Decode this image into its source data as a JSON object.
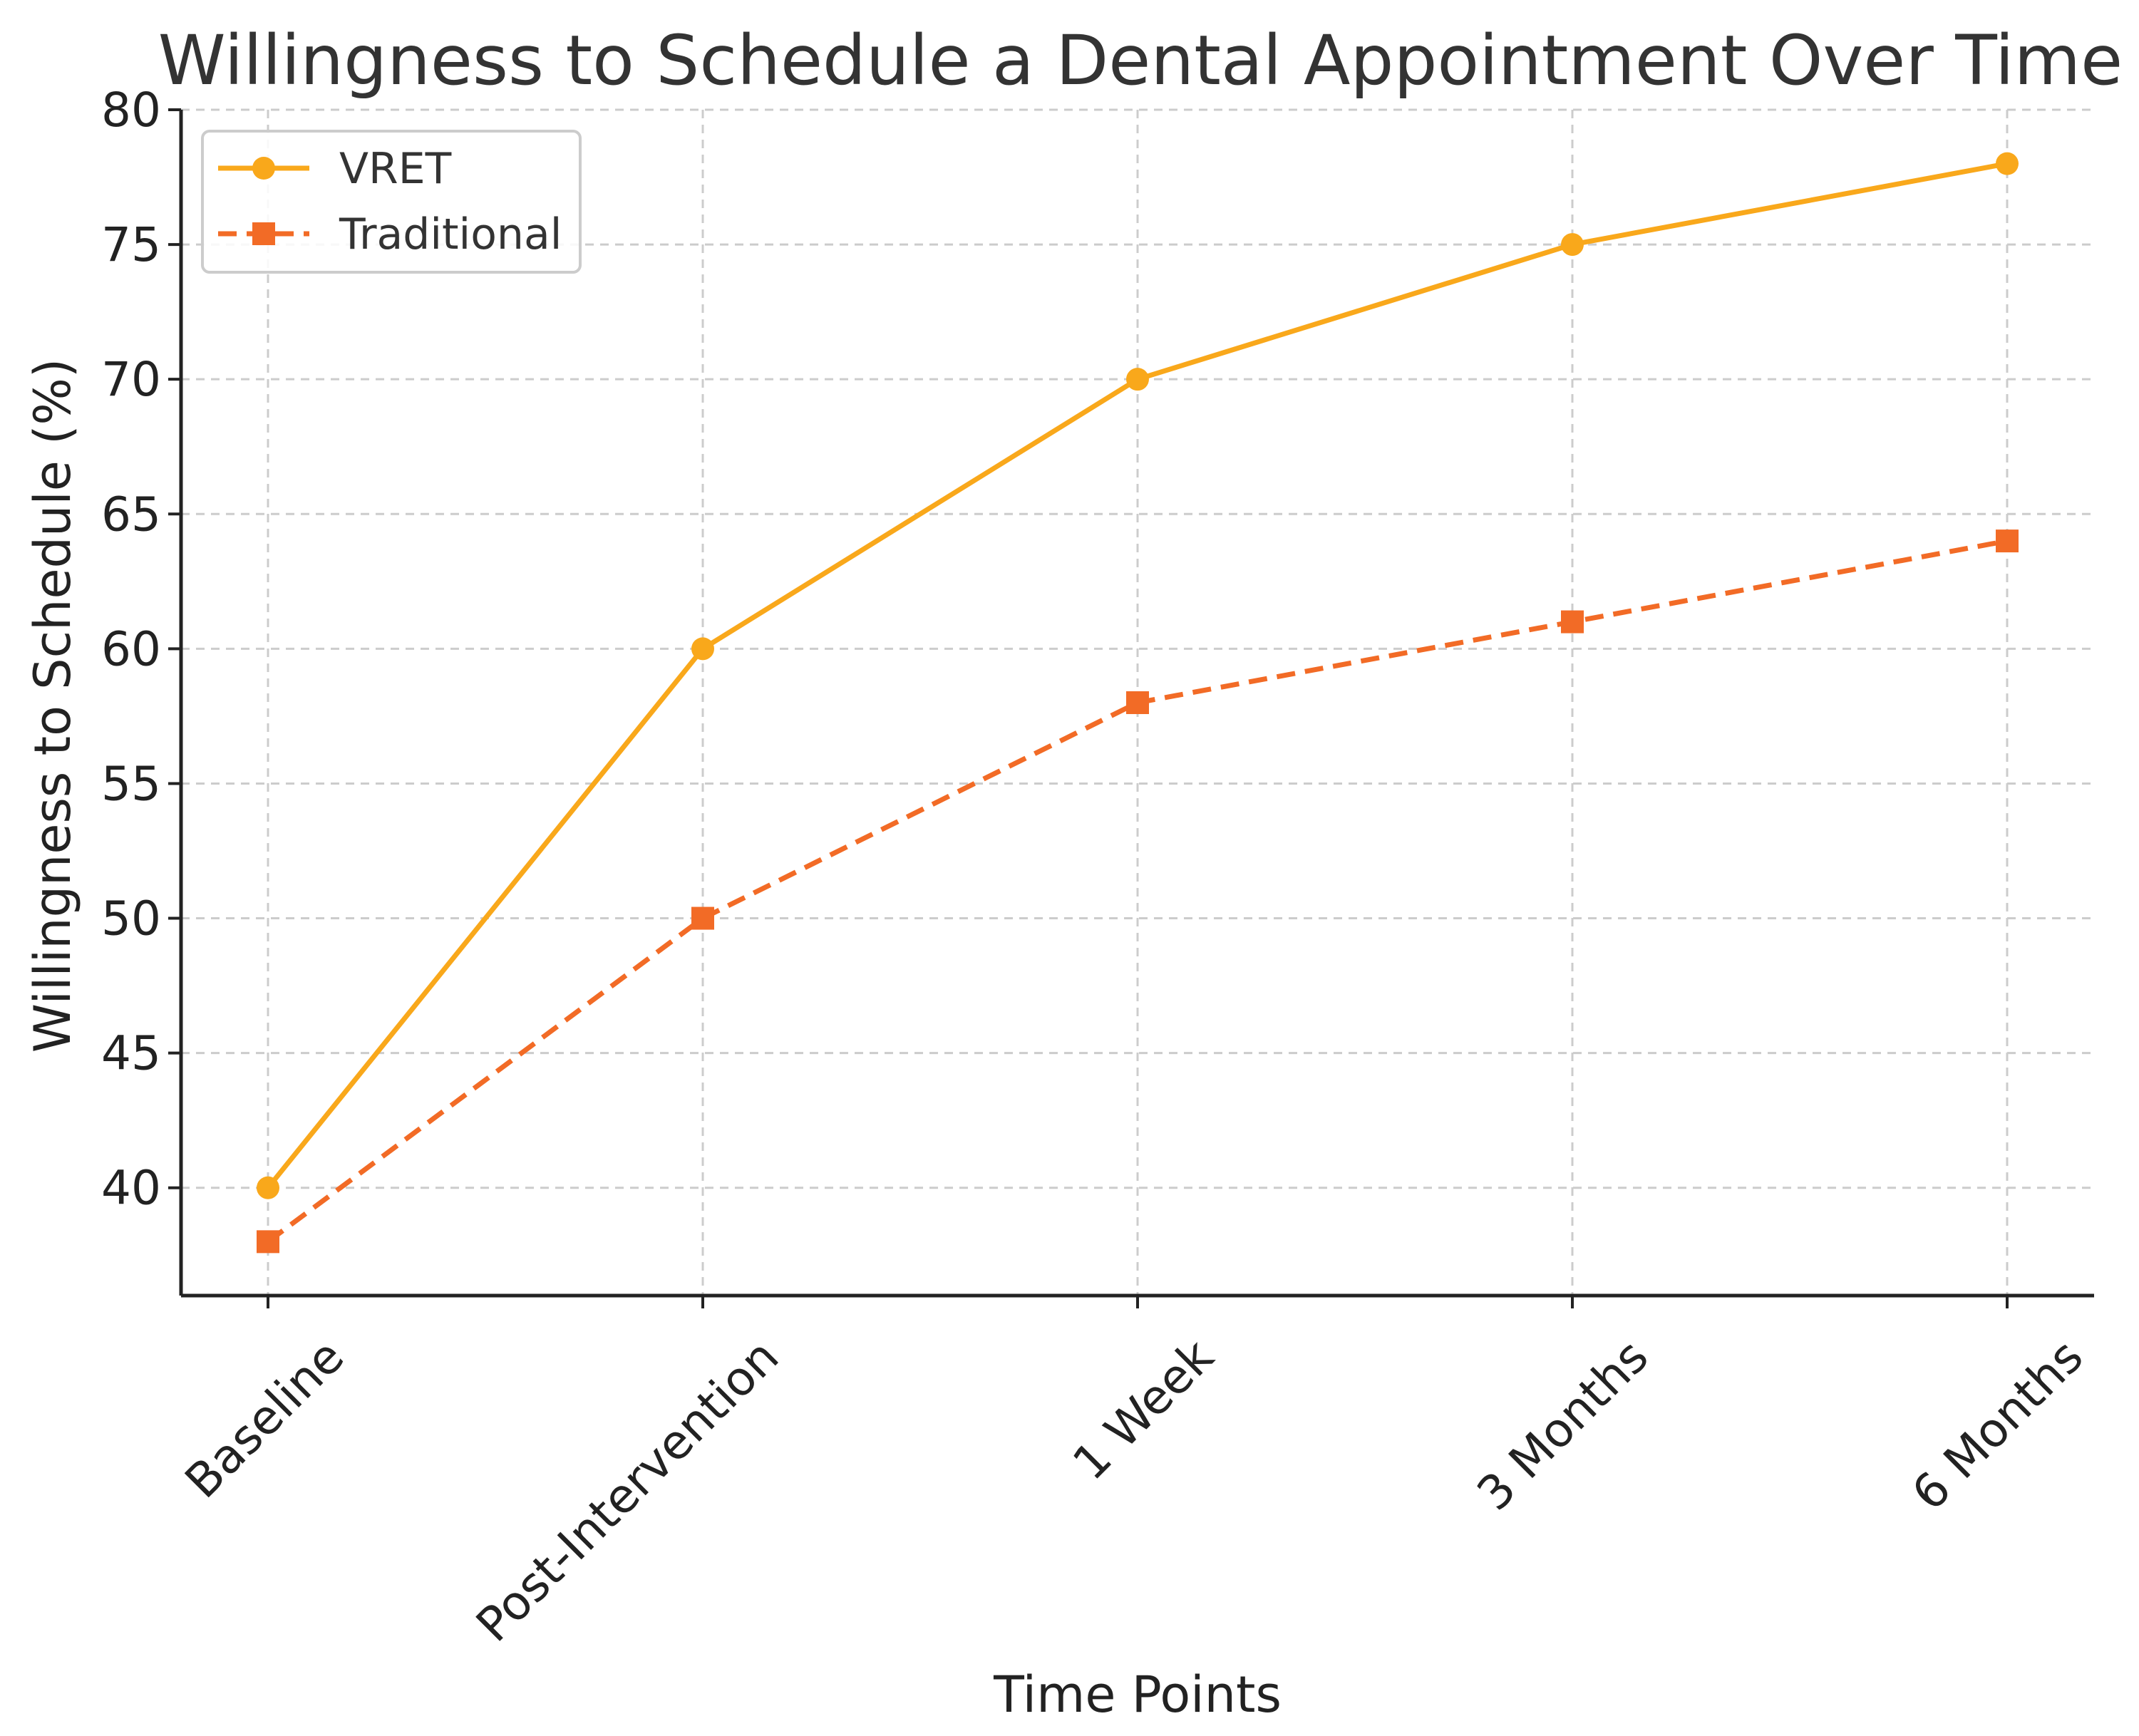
{
  "chart_data": {
    "type": "line",
    "title": "Willingness to Schedule a Dental Appointment Over Time",
    "xlabel": "Time Points",
    "ylabel": "Willingness to Schedule (%)",
    "categories": [
      "Baseline",
      "Post-Intervention",
      "1 Week",
      "3 Months",
      "6 Months"
    ],
    "ylim": [
      36,
      80
    ],
    "yticks": [
      40,
      45,
      50,
      55,
      60,
      65,
      70,
      75,
      80
    ],
    "grid": true,
    "legend_position": "top-left",
    "series": [
      {
        "name": "VRET",
        "values": [
          40,
          60,
          70,
          75,
          78
        ],
        "color": "#F9A81B",
        "marker": "circle",
        "linestyle": "solid"
      },
      {
        "name": "Traditional",
        "values": [
          38,
          50,
          58,
          61,
          64
        ],
        "color": "#F26B26",
        "marker": "square",
        "linestyle": "dashed"
      }
    ]
  }
}
